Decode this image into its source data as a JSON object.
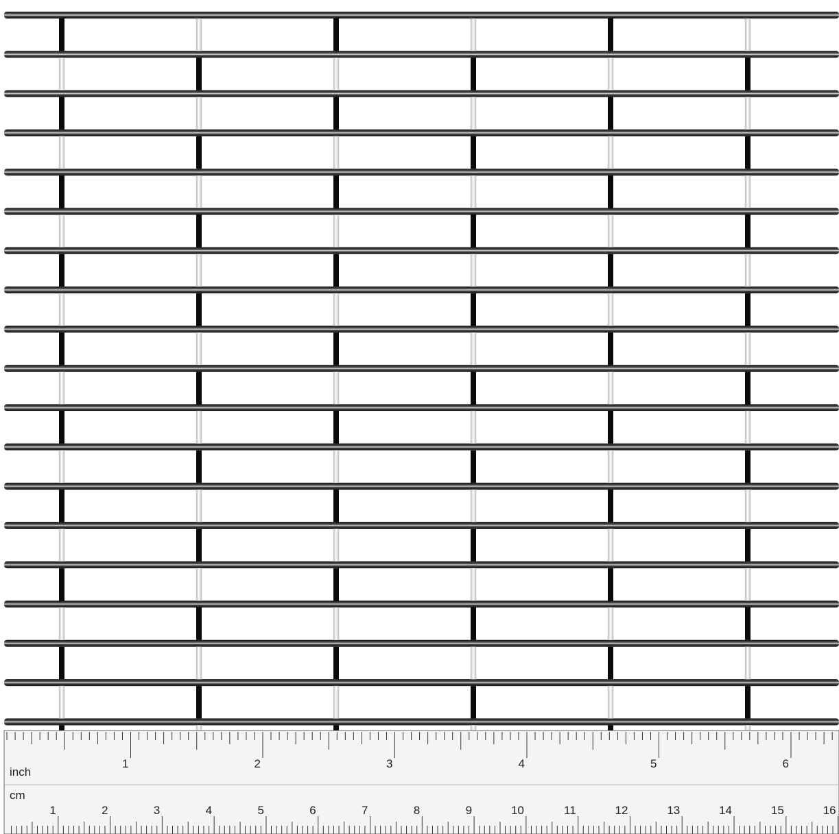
{
  "ruler": {
    "inch_label": "inch",
    "cm_label": "cm",
    "inch_numbers": [
      1,
      2,
      3,
      4,
      5,
      6
    ],
    "cm_numbers": [
      1,
      2,
      3,
      4,
      5,
      6,
      7,
      8,
      9,
      10,
      11,
      12,
      13,
      14,
      15,
      16
    ]
  }
}
